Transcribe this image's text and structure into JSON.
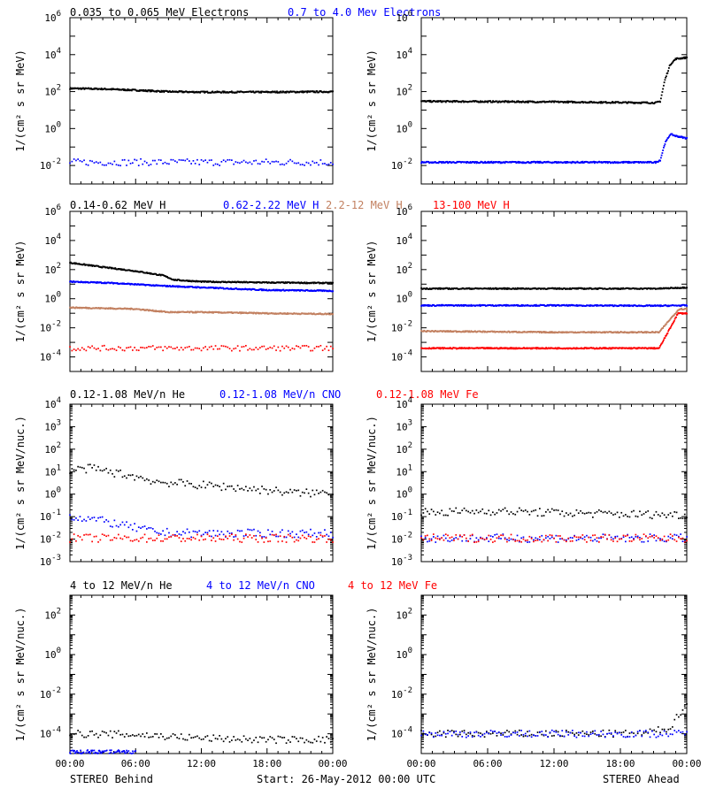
{
  "footer": {
    "left": "STEREO Behind",
    "center": "Start: 26-May-2012 00:00 UTC",
    "right": "STEREO Ahead"
  },
  "colors": {
    "black": "#000000",
    "blue": "#0000ff",
    "brown": "#c28060",
    "red": "#ff0000"
  },
  "chart_data": [
    {
      "type": "scatter",
      "row": 0,
      "panel": "left",
      "ylabel": "1/(cm² s sr MeV)",
      "log_y": true,
      "ylim_exp": [
        -3,
        6
      ],
      "y_tick_exps": [
        -2,
        0,
        2,
        4,
        6
      ],
      "x_ticks": [
        "00:00",
        "06:00",
        "12:00",
        "18:00",
        "00:00"
      ],
      "series": [
        {
          "name": "0.035 to 0.065 MeV Electrons",
          "color": "#000000",
          "style": "line",
          "x": [
            0,
            3,
            6,
            9,
            12,
            18,
            24
          ],
          "y": [
            150,
            140,
            120,
            100,
            95,
            95,
            100
          ]
        },
        {
          "name": "0.7 to 4.0 Mev Electrons",
          "color": "#0000ff",
          "style": "dots",
          "x": [
            0,
            12,
            24
          ],
          "y": [
            0.015,
            0.015,
            0.015
          ]
        }
      ]
    },
    {
      "type": "scatter",
      "row": 0,
      "panel": "right",
      "ylabel": "1/(cm² s sr MeV)",
      "log_y": true,
      "ylim_exp": [
        -3,
        6
      ],
      "y_tick_exps": [
        -2,
        0,
        2,
        4,
        6
      ],
      "x_ticks": [
        "00:00",
        "06:00",
        "12:00",
        "18:00",
        "00:00"
      ],
      "series": [
        {
          "color": "#000000",
          "style": "line",
          "x": [
            0,
            12,
            21.2,
            21.6,
            22.0,
            22.5,
            23.0,
            24.0
          ],
          "y": [
            30,
            28,
            25,
            30,
            400,
            3000,
            6000,
            7000
          ]
        },
        {
          "color": "#0000ff",
          "style": "line",
          "x": [
            0,
            21.2,
            21.6,
            22.0,
            22.5,
            23.0,
            24.0
          ],
          "y": [
            0.015,
            0.015,
            0.02,
            0.15,
            0.5,
            0.4,
            0.3
          ]
        }
      ]
    },
    {
      "type": "scatter",
      "row": 1,
      "panel": "left",
      "ylabel": "1/(cm² s sr MeV)",
      "log_y": true,
      "ylim_exp": [
        -5,
        6
      ],
      "y_tick_exps": [
        -4,
        -2,
        0,
        2,
        4,
        6
      ],
      "x_ticks": [
        "00:00",
        "06:00",
        "12:00",
        "18:00",
        "00:00"
      ],
      "series": [
        {
          "name": "0.14-0.62 MeV H",
          "color": "#000000",
          "style": "line",
          "x": [
            0,
            3,
            6,
            8.5,
            9.5,
            12,
            18,
            24
          ],
          "y": [
            300,
            150,
            80,
            40,
            20,
            15,
            13,
            12
          ]
        },
        {
          "name": "0.62-2.22 MeV H",
          "color": "#0000ff",
          "style": "line",
          "x": [
            0,
            4,
            8,
            12,
            18,
            24
          ],
          "y": [
            15,
            12,
            8,
            6,
            4,
            3.5
          ]
        },
        {
          "name": "2.2-12 MeV H",
          "color": "#c28060",
          "style": "line",
          "x": [
            0,
            6,
            9,
            12,
            18,
            24
          ],
          "y": [
            0.25,
            0.2,
            0.12,
            0.12,
            0.1,
            0.09
          ]
        },
        {
          "name": "13-100 MeV H",
          "color": "#ff0000",
          "style": "dots",
          "x": [
            0,
            12,
            24
          ],
          "y": [
            0.0004,
            0.0004,
            0.0004
          ]
        }
      ]
    },
    {
      "type": "scatter",
      "row": 1,
      "panel": "right",
      "ylabel": "1/(cm² s sr MeV)",
      "log_y": true,
      "ylim_exp": [
        -5,
        6
      ],
      "y_tick_exps": [
        -4,
        -2,
        0,
        2,
        4,
        6
      ],
      "x_ticks": [
        "00:00",
        "06:00",
        "12:00",
        "18:00",
        "00:00"
      ],
      "series": [
        {
          "color": "#000000",
          "style": "line",
          "x": [
            0,
            12,
            21.5,
            24
          ],
          "y": [
            5,
            5,
            5,
            6
          ]
        },
        {
          "color": "#0000ff",
          "style": "line",
          "x": [
            0,
            12,
            21.5,
            24
          ],
          "y": [
            0.35,
            0.35,
            0.33,
            0.35
          ]
        },
        {
          "color": "#c28060",
          "style": "line",
          "x": [
            0,
            12,
            21.5,
            22.5,
            23.3,
            24
          ],
          "y": [
            0.006,
            0.005,
            0.005,
            0.04,
            0.2,
            0.2
          ]
        },
        {
          "color": "#ff0000",
          "style": "line",
          "x": [
            0,
            12,
            21.5,
            22.5,
            23.2,
            24
          ],
          "y": [
            0.0004,
            0.0004,
            0.0004,
            0.01,
            0.1,
            0.1
          ]
        }
      ]
    },
    {
      "type": "scatter",
      "row": 2,
      "panel": "left",
      "ylabel": "1/(cm² s sr MeV/nuc.)",
      "log_y": true,
      "ylim_exp": [
        -3,
        4
      ],
      "y_tick_exps": [
        -3,
        -2,
        -1,
        0,
        1,
        2,
        3,
        4
      ],
      "x_ticks": [
        "00:00",
        "06:00",
        "12:00",
        "18:00",
        "00:00"
      ],
      "series": [
        {
          "name": "0.12-1.08 MeV/n He",
          "color": "#000000",
          "style": "dots",
          "x": [
            0,
            2,
            4,
            6,
            8,
            10,
            12,
            15,
            18,
            21,
            24
          ],
          "y": [
            12,
            14,
            9,
            6,
            3.5,
            3,
            2.5,
            2,
            1.5,
            1.1,
            1.2
          ]
        },
        {
          "name": "0.12-1.08 MeV/n CNO",
          "color": "#0000ff",
          "style": "dots",
          "x": [
            0,
            2,
            4,
            8,
            12,
            18,
            24
          ],
          "y": [
            0.1,
            0.08,
            0.05,
            0.02,
            0.018,
            0.018,
            0.018
          ]
        },
        {
          "name": "0.12-1.08 MeV Fe",
          "color": "#ff0000",
          "style": "dots",
          "x": [
            0,
            12,
            24
          ],
          "y": [
            0.011,
            0.011,
            0.011
          ]
        }
      ]
    },
    {
      "type": "scatter",
      "row": 2,
      "panel": "right",
      "ylabel": "1/(cm² s sr MeV/nuc.)",
      "log_y": true,
      "ylim_exp": [
        -3,
        4
      ],
      "y_tick_exps": [
        -3,
        -2,
        -1,
        0,
        1,
        2,
        3,
        4
      ],
      "x_ticks": [
        "00:00",
        "06:00",
        "12:00",
        "18:00",
        "00:00"
      ],
      "series": [
        {
          "color": "#000000",
          "style": "dots",
          "x": [
            0,
            6,
            12,
            18,
            24
          ],
          "y": [
            0.15,
            0.18,
            0.15,
            0.13,
            0.12
          ]
        },
        {
          "color": "#0000ff",
          "style": "dots",
          "x": [
            0,
            12,
            24
          ],
          "y": [
            0.011,
            0.011,
            0.011
          ]
        },
        {
          "color": "#ff0000",
          "style": "dots",
          "x": [
            0,
            12,
            24
          ],
          "y": [
            0.011,
            0.011,
            0.011
          ]
        }
      ]
    },
    {
      "type": "scatter",
      "row": 3,
      "panel": "left",
      "ylabel": "1/(cm² s sr MeV/nuc.)",
      "log_y": true,
      "ylim_exp": [
        -5,
        3
      ],
      "y_tick_exps": [
        -4,
        -2,
        0,
        2
      ],
      "x_ticks": [
        "00:00",
        "06:00",
        "12:00",
        "18:00",
        "00:00"
      ],
      "series": [
        {
          "name": "4 to 12 MeV/n He",
          "color": "#000000",
          "style": "dots",
          "x": [
            0,
            6,
            12,
            18,
            24
          ],
          "y": [
            0.0001,
            9e-05,
            6e-05,
            5e-05,
            5e-05
          ]
        },
        {
          "name": "4 to 12 MeV/n CNO",
          "color": "#0000ff",
          "style": "dots",
          "x": [
            0,
            2,
            6
          ],
          "y": [
            1e-05,
            1e-05,
            1e-05
          ]
        },
        {
          "name": "4 to 12 MeV Fe",
          "color": "#ff0000",
          "style": "dots",
          "x": [],
          "y": []
        }
      ]
    },
    {
      "type": "scatter",
      "row": 3,
      "panel": "right",
      "ylabel": "1/(cm² s sr MeV/nuc.)",
      "log_y": true,
      "ylim_exp": [
        -5,
        3
      ],
      "y_tick_exps": [
        -4,
        -2,
        0,
        2
      ],
      "x_ticks": [
        "00:00",
        "06:00",
        "12:00",
        "18:00",
        "00:00"
      ],
      "series": [
        {
          "color": "#000000",
          "style": "dots",
          "x": [
            0,
            12,
            20,
            22.5,
            23.3,
            24
          ],
          "y": [
            0.0001,
            0.0001,
            0.0001,
            0.0002,
            0.001,
            0.004
          ]
        },
        {
          "color": "#0000ff",
          "style": "dots",
          "x": [
            0,
            24
          ],
          "y": [
            0.0001,
            0.0001
          ]
        }
      ]
    }
  ]
}
